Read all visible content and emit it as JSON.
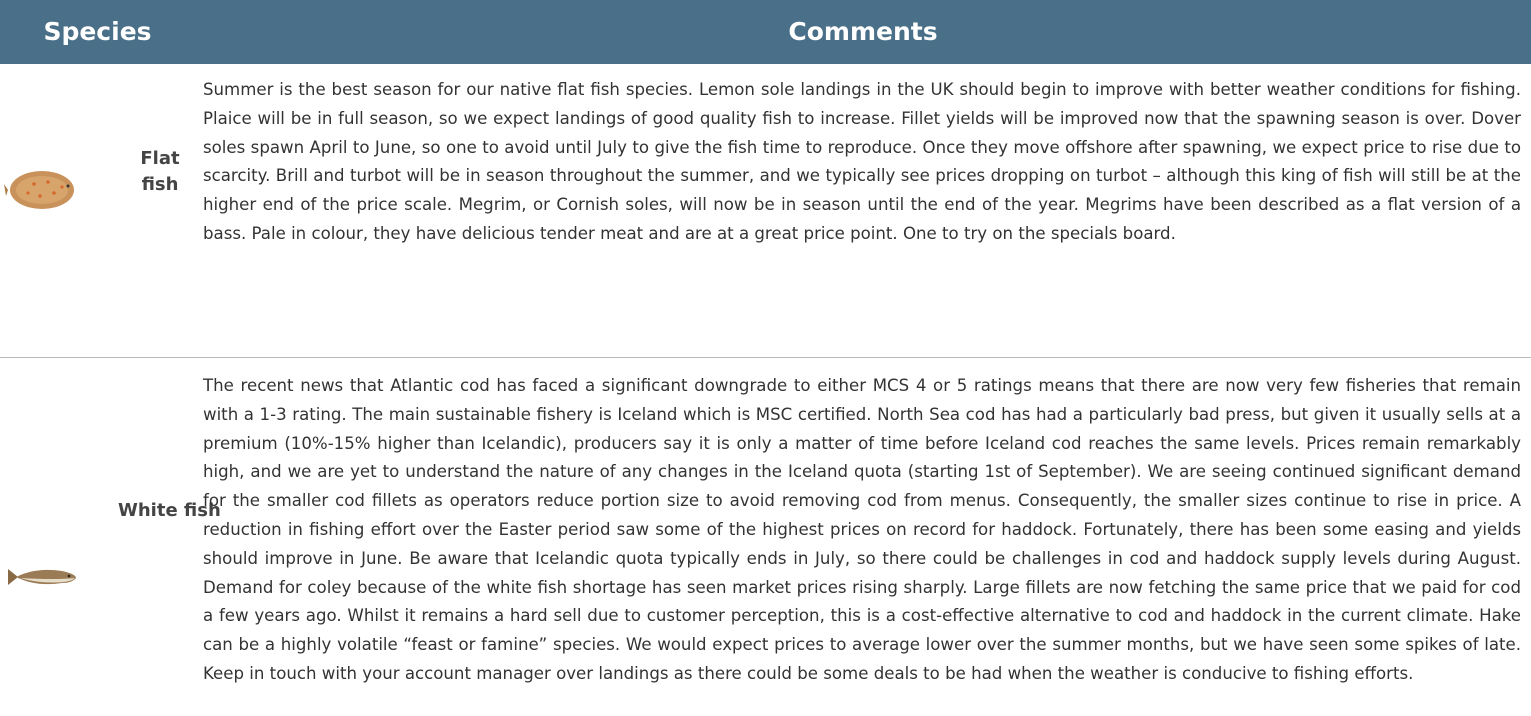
{
  "header": {
    "columns": [
      "Species",
      "Comments"
    ]
  },
  "rows": [
    {
      "species": "Flat fish",
      "comments": "Summer is the best season for our native flat fish species. Lemon sole landings in the UK should begin to improve with better weather conditions for fishing. Plaice will be in full season, so we expect landings of good quality fish to increase. Fillet yields will be improved now that the spawning season is over. Dover soles spawn April to June, so one to avoid until July to give the fish time to reproduce. Once they move offshore after spawning, we expect price to rise due to scarcity. Brill and turbot will be in season throughout the summer, and we typically see prices dropping on turbot – although this king of fish will still be at the higher end of the price scale. Megrim, or Cornish soles, will now be in season until the end of the year. Megrims have been described as a flat version of a bass. Pale in colour, they have delicious tender meat and are at a great price point. One to try on the specials board."
    },
    {
      "species": "White fish",
      "comments": "The recent news that Atlantic cod has faced a significant downgrade to either MCS 4 or 5 ratings means that there are now very few fisheries that remain with a 1-3 rating. The main sustainable fishery is Iceland which is MSC certified. North Sea cod has had a particularly bad press, but given it usually sells at a premium (10%-15% higher than Icelandic), producers say it is only a matter of time before Iceland cod reaches the same levels. Prices remain remarkably high, and we are yet to understand the nature of any changes in the Iceland quota (starting 1st of September). We are seeing continued significant demand for the smaller cod fillets as operators reduce portion size to avoid removing cod from menus. Consequently, the smaller sizes continue to rise in price. A reduction in fishing effort over the Easter period saw some of the highest prices on record for haddock. Fortunately, there has been some easing and yields should improve in June. Be aware that Icelandic quota typically ends in July, so there could be challenges in cod and haddock supply levels during August. Demand for coley because of the white fish shortage has seen market prices rising sharply. Large fillets are now fetching the same price that we paid for cod a few years ago. Whilst it remains a hard sell due to customer perception, this is a cost-effective alternative to cod and haddock in the current climate. Hake can be a highly volatile “feast or famine” species. We would expect prices to average lower over the summer months, but we have seen some spikes of late. Keep in touch with your account manager over landings as there could be some deals to be had when the weather is conducive to fishing efforts."
    }
  ]
}
